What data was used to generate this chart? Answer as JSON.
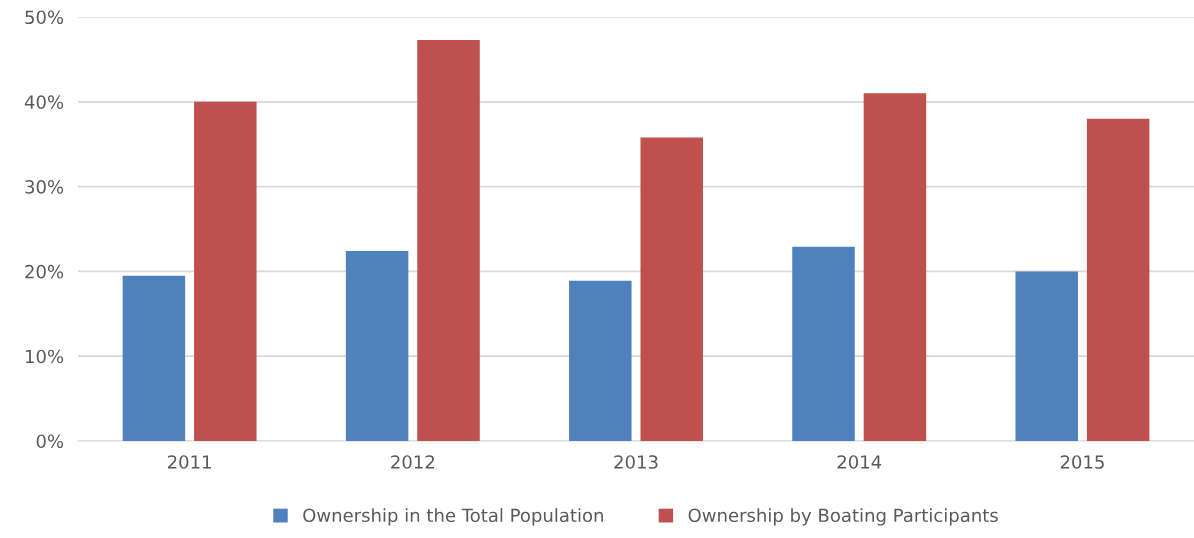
{
  "chart_data": {
    "type": "bar",
    "categories": [
      "2011",
      "2012",
      "2013",
      "2014",
      "2015"
    ],
    "series": [
      {
        "name": "Ownership in the Total Population",
        "color": "#4f81bd",
        "values": [
          19.5,
          22.4,
          18.9,
          22.9,
          20.0
        ]
      },
      {
        "name": "Ownership by Boating Participants",
        "color": "#c0504d",
        "values": [
          40.0,
          47.3,
          35.8,
          41.0,
          38.0
        ]
      }
    ],
    "ylim": [
      0,
      50
    ],
    "yticks": [
      {
        "value": 0,
        "label": "0%"
      },
      {
        "value": 10,
        "label": "10%"
      },
      {
        "value": 20,
        "label": "20%"
      },
      {
        "value": 30,
        "label": "30%"
      },
      {
        "value": 40,
        "label": "40%"
      },
      {
        "value": 50,
        "label": "50%"
      }
    ],
    "grid": "y",
    "legend": "bottom"
  }
}
